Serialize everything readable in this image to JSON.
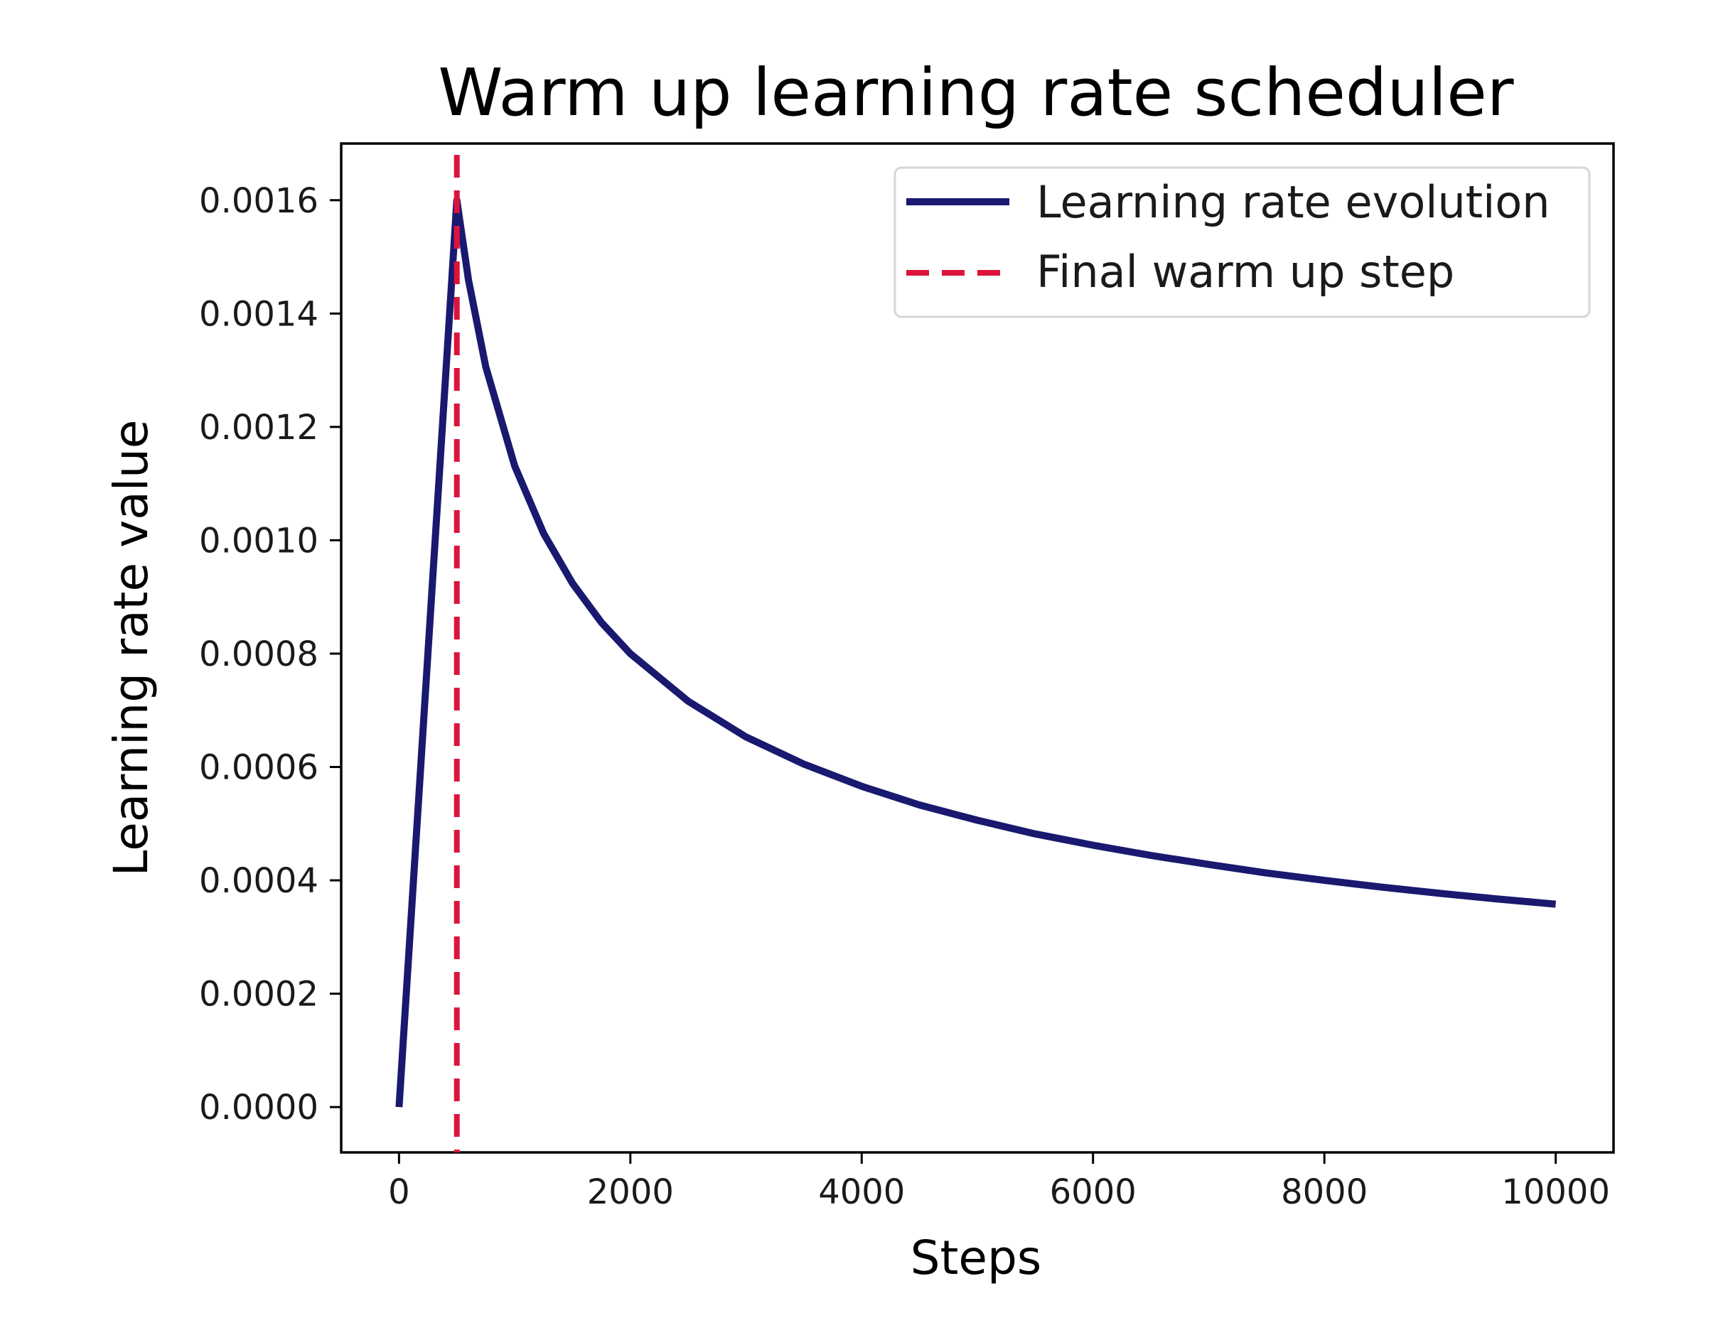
{
  "chart_data": {
    "type": "line",
    "title": "Warm up learning rate scheduler",
    "xlabel": "Steps",
    "ylabel": "Learning rate value",
    "xlim": [
      -500,
      10500
    ],
    "ylim": [
      -8e-05,
      0.0017
    ],
    "xticks": [
      0,
      2000,
      4000,
      6000,
      8000,
      10000
    ],
    "xtick_labels": [
      "0",
      "2000",
      "4000",
      "6000",
      "8000",
      "10000"
    ],
    "yticks": [
      0,
      0.0002,
      0.0004,
      0.0006,
      0.0008,
      0.001,
      0.0012,
      0.0014,
      0.0016
    ],
    "ytick_labels": [
      "0.0000",
      "0.0002",
      "0.0004",
      "0.0006",
      "0.0008",
      "0.0010",
      "0.0012",
      "0.0014",
      "0.0016"
    ],
    "grid": false,
    "legend_position": "top-right",
    "series": [
      {
        "name": "Learning rate evolution",
        "style": "solid",
        "color": "#191970",
        "x": [
          0,
          250,
          500,
          600,
          750,
          1000,
          1250,
          1500,
          1750,
          2000,
          2500,
          3000,
          3500,
          4000,
          4500,
          5000,
          5500,
          6000,
          6500,
          7000,
          7500,
          8000,
          8500,
          9000,
          9500,
          10000
        ],
        "y": [
          0,
          0.0008,
          0.0016,
          0.00146,
          0.001306,
          0.001131,
          0.001012,
          0.000924,
          0.000855,
          0.0008,
          0.000716,
          0.000653,
          0.000605,
          0.000566,
          0.000533,
          0.000506,
          0.000482,
          0.000462,
          0.000444,
          0.000428,
          0.000413,
          0.0004,
          0.000388,
          0.000377,
          0.000367,
          0.000358
        ]
      },
      {
        "name": "Final warm up step",
        "style": "dashed",
        "color": "#dc143c",
        "vline_x": 500
      }
    ]
  }
}
